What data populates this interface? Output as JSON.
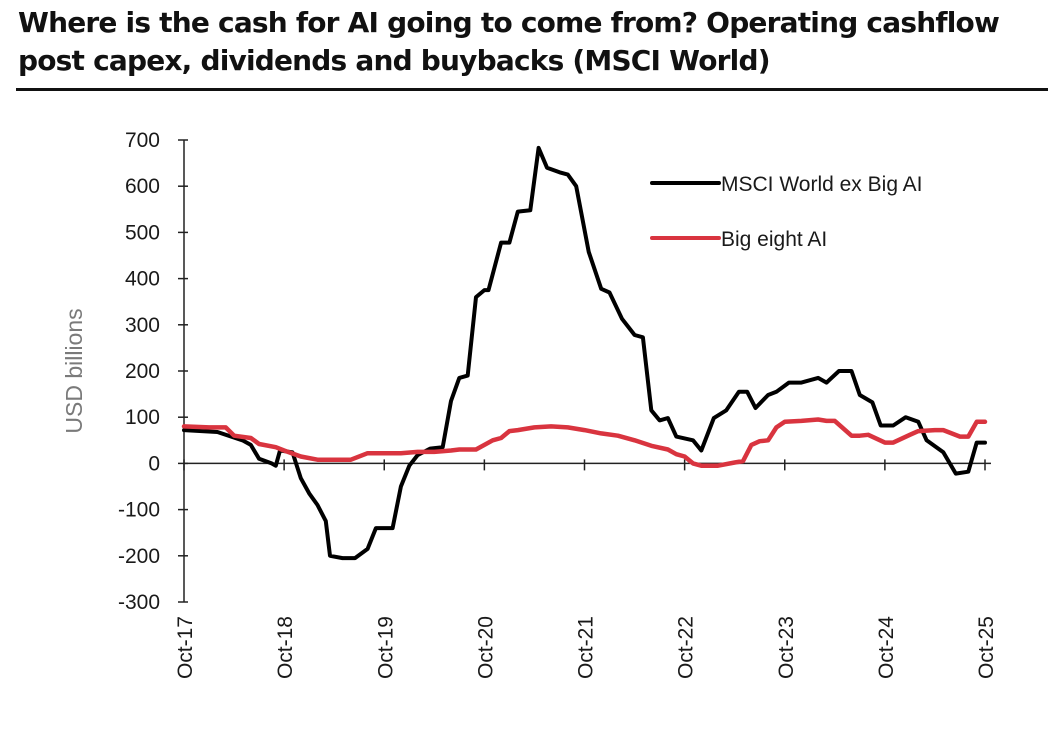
{
  "title": "Where is the cash for AI going to come from? Operating cashflow post capex, dividends and buybacks (MSCI World)",
  "chart_data": {
    "type": "line",
    "title": "Where is the cash for AI going to come from? Operating cashflow post capex, dividends and buybacks (MSCI World)",
    "xlabel": "",
    "ylabel": "USD billions",
    "ylim": [
      -300,
      700
    ],
    "yticks": [
      700,
      600,
      500,
      400,
      300,
      200,
      100,
      0,
      -100,
      -200,
      -300
    ],
    "ytick_labels": [
      "700",
      "600",
      "500",
      "400",
      "300",
      "200",
      "100",
      "0",
      "-100",
      "-200",
      "-300"
    ],
    "x_unit": "months since Oct-17",
    "xlim": [
      0,
      96
    ],
    "xticks": [
      0,
      12,
      24,
      36,
      48,
      60,
      72,
      84,
      96
    ],
    "xtick_labels": [
      "Oct-17",
      "Oct-18",
      "Oct-19",
      "Oct-20",
      "Oct-21",
      "Oct-22",
      "Oct-23",
      "Oct-24",
      "Oct-25"
    ],
    "grid": false,
    "legend_position": "top-right",
    "series": [
      {
        "name": "MSCI World ex Big AI",
        "color": "#000000",
        "x": [
          0,
          4,
          7,
          8,
          9,
          10.5,
          11,
          11.5,
          13,
          14,
          15,
          16,
          17,
          17.5,
          19,
          20.5,
          22,
          23,
          25,
          26,
          27,
          28,
          29.5,
          31,
          32,
          33,
          34,
          35,
          36,
          36.5,
          38,
          39,
          40,
          41.5,
          42.5,
          43.5,
          45,
          46,
          47,
          48.5,
          50,
          51,
          52.5,
          54,
          55,
          56,
          57,
          58,
          59,
          61,
          62,
          63.5,
          65,
          66.5,
          67.5,
          68.5,
          70,
          71,
          72.5,
          74,
          76,
          77,
          78.5,
          80,
          81,
          82.5,
          83.5,
          85,
          86.5,
          88,
          89,
          91,
          92.5,
          94,
          95,
          96
        ],
        "y": [
          72,
          68,
          50,
          40,
          10,
          0,
          -5,
          28,
          24,
          -32,
          -65,
          -90,
          -125,
          -200,
          -205,
          -205,
          -185,
          -140,
          -140,
          -50,
          -5,
          18,
          32,
          35,
          135,
          185,
          190,
          360,
          375,
          375,
          478,
          478,
          545,
          548,
          683,
          640,
          630,
          625,
          600,
          458,
          378,
          370,
          313,
          278,
          273,
          115,
          93,
          98,
          58,
          50,
          28,
          98,
          115,
          155,
          155,
          120,
          148,
          155,
          175,
          175,
          185,
          175,
          200,
          200,
          148,
          132,
          82,
          82,
          100,
          90,
          50,
          24,
          -22,
          -18,
          45,
          45
        ]
      },
      {
        "name": "Big eight AI",
        "color": "#d9343f",
        "x": [
          0,
          3,
          5,
          6,
          8,
          9,
          11,
          12,
          14,
          16,
          18,
          20,
          22,
          24,
          26,
          28,
          30,
          32,
          33,
          35,
          37,
          38,
          39,
          40,
          42,
          44,
          46,
          48,
          50,
          52,
          54,
          56,
          58,
          59,
          60,
          61,
          62,
          64,
          66,
          67,
          68,
          69,
          70,
          71,
          72,
          74,
          76,
          77,
          78,
          80,
          81,
          82,
          84,
          85,
          87,
          88,
          90,
          91,
          93,
          94,
          95,
          96
        ],
        "y": [
          80,
          78,
          78,
          60,
          55,
          42,
          35,
          28,
          15,
          8,
          8,
          8,
          22,
          22,
          22,
          25,
          25,
          28,
          30,
          30,
          50,
          55,
          70,
          72,
          78,
          80,
          78,
          72,
          65,
          60,
          50,
          38,
          30,
          20,
          15,
          0,
          -5,
          -5,
          2,
          5,
          40,
          48,
          50,
          78,
          90,
          92,
          95,
          92,
          92,
          60,
          60,
          62,
          45,
          45,
          62,
          70,
          72,
          72,
          58,
          58,
          90,
          90
        ]
      }
    ]
  }
}
